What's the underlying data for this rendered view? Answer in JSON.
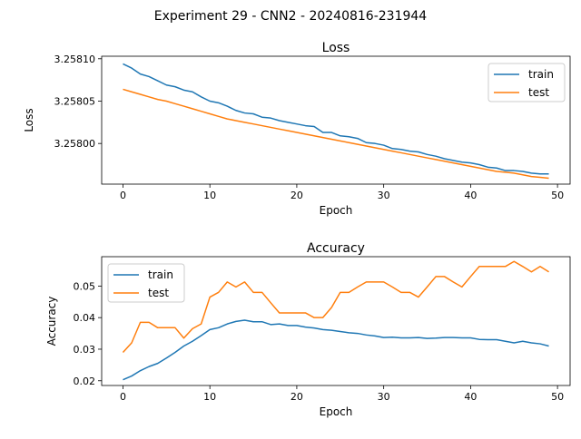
{
  "suptitle": "Experiment 29 - CNN2 - 20240816-231944",
  "colors": {
    "train": "#1f77b4",
    "test": "#ff7f0e"
  },
  "chart_data": [
    {
      "type": "line",
      "title": "Loss",
      "xlabel": "Epoch",
      "ylabel": "Loss",
      "xlim": [
        -2.45,
        51.45
      ],
      "ylim": [
        3.257952,
        3.258103
      ],
      "xticks": [
        0,
        10,
        20,
        30,
        40,
        50
      ],
      "xtick_labels": [
        "0",
        "10",
        "20",
        "30",
        "40",
        "50"
      ],
      "yticks": [
        3.258,
        3.25805,
        3.2581
      ],
      "ytick_labels": [
        "3.25800",
        "3.25805",
        "3.25810"
      ],
      "grid": false,
      "legend": "upper right",
      "x": [
        0,
        1,
        2,
        3,
        4,
        5,
        6,
        7,
        8,
        9,
        10,
        11,
        12,
        13,
        14,
        15,
        16,
        17,
        18,
        19,
        20,
        21,
        22,
        23,
        24,
        25,
        26,
        27,
        28,
        29,
        30,
        31,
        32,
        33,
        34,
        35,
        36,
        37,
        38,
        39,
        40,
        41,
        42,
        43,
        44,
        45,
        46,
        47,
        48,
        49
      ],
      "series": [
        {
          "name": "train",
          "color": "#1f77b4",
          "values": [
            3.258094,
            3.258089,
            3.258082,
            3.258079,
            3.258074,
            3.258069,
            3.258067,
            3.258063,
            3.258061,
            3.258055,
            3.25805,
            3.258048,
            3.258044,
            3.258039,
            3.258036,
            3.258035,
            3.258031,
            3.25803,
            3.258027,
            3.258025,
            3.258023,
            3.258021,
            3.25802,
            3.258013,
            3.258013,
            3.258009,
            3.258008,
            3.258006,
            3.258001,
            3.258,
            3.257998,
            3.257994,
            3.257993,
            3.257991,
            3.25799,
            3.257987,
            3.257985,
            3.257982,
            3.25798,
            3.257978,
            3.257977,
            3.257975,
            3.257972,
            3.257971,
            3.257968,
            3.257968,
            3.257967,
            3.257965,
            3.257964,
            3.257964
          ]
        },
        {
          "name": "test",
          "color": "#ff7f0e",
          "values": [
            3.258064,
            3.258061,
            3.258058,
            3.258055,
            3.258052,
            3.25805,
            3.258047,
            3.258044,
            3.258041,
            3.258038,
            3.258035,
            3.258032,
            3.258029,
            3.258027,
            3.258025,
            3.258023,
            3.258021,
            3.258019,
            3.258017,
            3.258015,
            3.258013,
            3.258011,
            3.258009,
            3.258007,
            3.258005,
            3.258003,
            3.258001,
            3.257999,
            3.257997,
            3.257995,
            3.257993,
            3.257991,
            3.257989,
            3.257987,
            3.257985,
            3.257983,
            3.257981,
            3.257979,
            3.257977,
            3.257975,
            3.257973,
            3.257971,
            3.257969,
            3.257967,
            3.257966,
            3.257965,
            3.257963,
            3.257961,
            3.25796,
            3.257959
          ]
        }
      ]
    },
    {
      "type": "line",
      "title": "Accuracy",
      "xlabel": "Epoch",
      "ylabel": "Accuracy",
      "xlim": [
        -2.45,
        51.45
      ],
      "ylim": [
        0.0185,
        0.0593
      ],
      "xticks": [
        0,
        10,
        20,
        30,
        40,
        50
      ],
      "xtick_labels": [
        "0",
        "10",
        "20",
        "30",
        "40",
        "50"
      ],
      "yticks": [
        0.02,
        0.03,
        0.04,
        0.05
      ],
      "ytick_labels": [
        "0.02",
        "0.03",
        "0.04",
        "0.05"
      ],
      "grid": false,
      "legend": "upper left",
      "x": [
        0,
        1,
        2,
        3,
        4,
        5,
        6,
        7,
        8,
        9,
        10,
        11,
        12,
        13,
        14,
        15,
        16,
        17,
        18,
        19,
        20,
        21,
        22,
        23,
        24,
        25,
        26,
        27,
        28,
        29,
        30,
        31,
        32,
        33,
        34,
        35,
        36,
        37,
        38,
        39,
        40,
        41,
        42,
        43,
        44,
        45,
        46,
        47,
        48,
        49
      ],
      "series": [
        {
          "name": "train",
          "color": "#1f77b4",
          "values": [
            0.0203,
            0.0215,
            0.0232,
            0.0245,
            0.0255,
            0.0272,
            0.029,
            0.031,
            0.0325,
            0.0343,
            0.0362,
            0.0368,
            0.038,
            0.0388,
            0.0392,
            0.0387,
            0.0387,
            0.0378,
            0.038,
            0.0375,
            0.0375,
            0.037,
            0.0367,
            0.0362,
            0.036,
            0.0356,
            0.0352,
            0.035,
            0.0345,
            0.0342,
            0.0337,
            0.0338,
            0.0336,
            0.0336,
            0.0337,
            0.0334,
            0.0335,
            0.0337,
            0.0337,
            0.0336,
            0.0336,
            0.0331,
            0.033,
            0.033,
            0.0325,
            0.032,
            0.0325,
            0.032,
            0.0317,
            0.031
          ]
        },
        {
          "name": "test",
          "color": "#ff7f0e",
          "values": [
            0.029,
            0.032,
            0.0385,
            0.0385,
            0.0368,
            0.0368,
            0.0368,
            0.0335,
            0.0365,
            0.038,
            0.0465,
            0.048,
            0.0513,
            0.0497,
            0.0513,
            0.048,
            0.048,
            0.0447,
            0.0415,
            0.0415,
            0.0415,
            0.0415,
            0.04,
            0.04,
            0.0432,
            0.048,
            0.048,
            0.0497,
            0.0513,
            0.0513,
            0.0513,
            0.0497,
            0.048,
            0.048,
            0.0465,
            0.0497,
            0.053,
            0.053,
            0.0513,
            0.0497,
            0.053,
            0.0562,
            0.0562,
            0.0562,
            0.0562,
            0.0578,
            0.0562,
            0.0545,
            0.0562,
            0.0545
          ]
        }
      ]
    }
  ]
}
